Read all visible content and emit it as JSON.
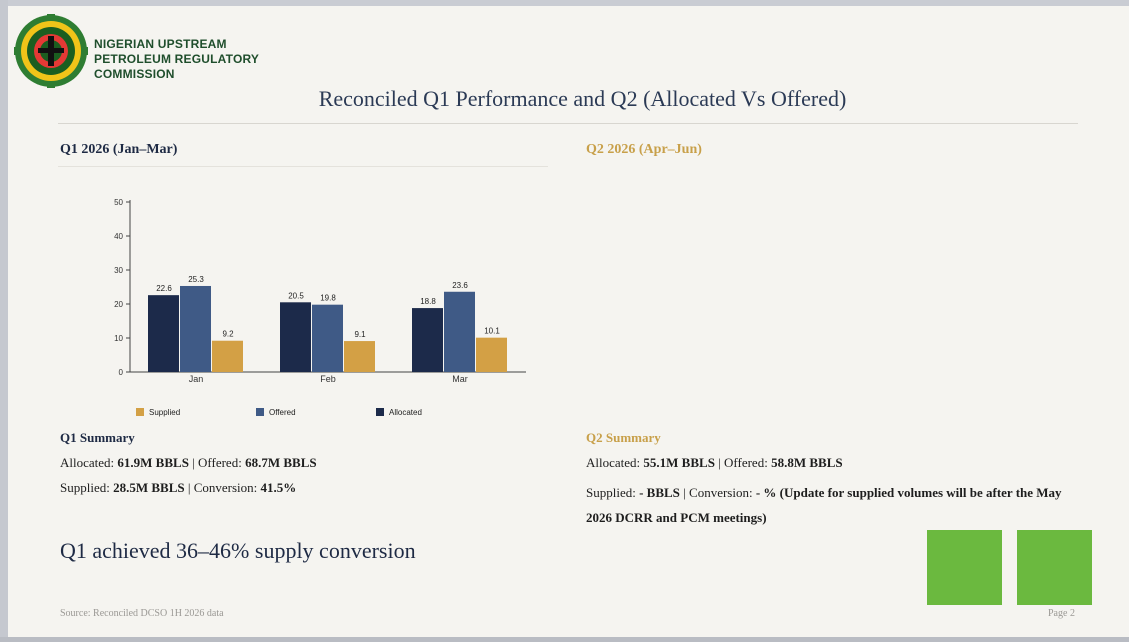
{
  "org": {
    "name_lines": [
      "NIGERIAN UPSTREAM",
      "PETROLEUM REGULATORY",
      "COMMISSION"
    ]
  },
  "slide": {
    "title": "Reconciled Q1 Performance and Q2 (Allocated Vs Offered)",
    "q1_heading": "Q1 2026 (Jan–Mar)",
    "q2_heading": "Q2 2026 (Apr–Jun)",
    "q1_summary": {
      "heading": "Q1 Summary",
      "allocated_label": "Allocated: ",
      "allocated_value": "61.9M BBLS",
      "offered_label": " | Offered: ",
      "offered_value": "68.7M BBLS",
      "supplied_label": "Supplied: ",
      "supplied_value": "28.5M BBLS",
      "conversion_label": " | Conversion: ",
      "conversion_value": "41.5%"
    },
    "q2_summary": {
      "heading": "Q2 Summary",
      "allocated_label": "Allocated: ",
      "allocated_value": "55.1M BBLS",
      "offered_label": " | Offered: ",
      "offered_value": "58.8M BBLS",
      "supplied_label": "Supplied: ",
      "supplied_value": "-  BBLS",
      "conversion_label": " | Conversion: ",
      "conversion_value": "- % (Update for supplied volumes will be after the May 2026 DCRR and PCM meetings)"
    },
    "headline": "Q1 achieved 36–46% supply conversion",
    "source": "Source: Reconciled DCSO 1H 2026 data",
    "page": "Page 2"
  },
  "colors": {
    "allocated": "#1c2a4a",
    "offered": "#3f5a86",
    "supplied": "#d3a045",
    "accent_green": "#6bb93f"
  },
  "chart_data": {
    "type": "bar",
    "categories": [
      "Jan",
      "Feb",
      "Mar"
    ],
    "series": [
      {
        "name": "Allocated",
        "values": [
          22.6,
          20.5,
          18.8
        ]
      },
      {
        "name": "Offered",
        "values": [
          25.3,
          19.8,
          23.6
        ]
      },
      {
        "name": "Supplied",
        "values": [
          9.2,
          9.1,
          10.1
        ]
      }
    ],
    "legend_order": [
      "Supplied",
      "Offered",
      "Allocated"
    ],
    "ylim": [
      0,
      50
    ],
    "yticks": [
      0,
      10,
      20,
      30,
      40,
      50
    ],
    "legend_position": "bottom",
    "grid": false
  }
}
